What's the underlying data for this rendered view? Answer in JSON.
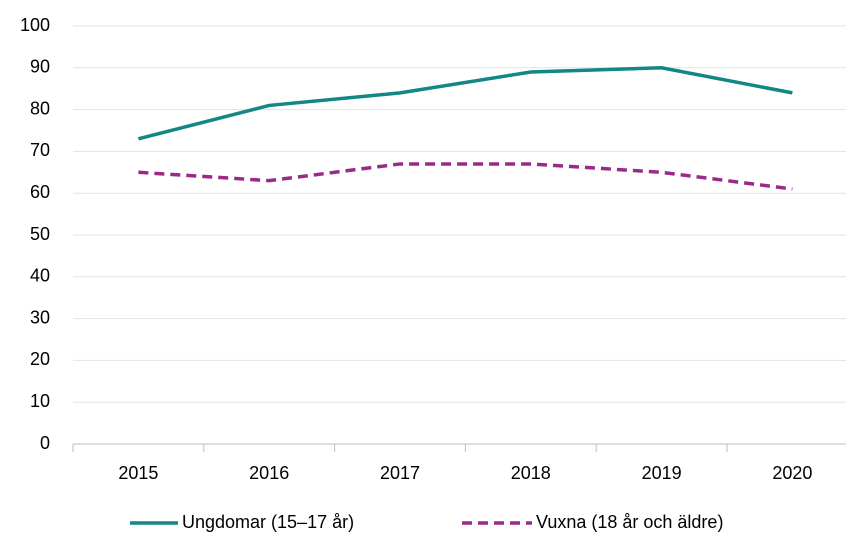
{
  "chart_data": {
    "type": "line",
    "categories": [
      "2015",
      "2016",
      "2017",
      "2018",
      "2019",
      "2020"
    ],
    "series": [
      {
        "name": "Ungdomar (15–17 år)",
        "color": "#138686",
        "dash": false,
        "values": [
          73,
          81,
          84,
          89,
          90,
          84
        ]
      },
      {
        "name": "Vuxna (18 år och äldre)",
        "color": "#9a2a8a",
        "dash": true,
        "values": [
          65,
          63,
          67,
          67,
          65,
          61
        ]
      }
    ],
    "ylim": [
      0,
      100
    ],
    "yticks": [
      0,
      10,
      20,
      30,
      40,
      50,
      60,
      70,
      80,
      90,
      100
    ],
    "grid": true,
    "legend": "bottom"
  }
}
